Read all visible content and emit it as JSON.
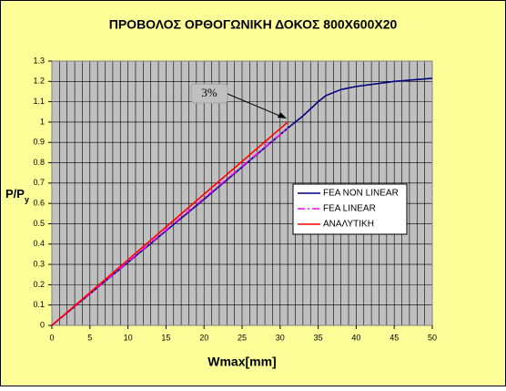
{
  "chart_data": {
    "type": "line",
    "title": "ΠΡΟΒΟΛΟΣ ΟΡΘΟΓΩΝΙΚΗ ΔΟΚΟΣ 800X600X20",
    "xlabel": "Wmax[mm]",
    "ylabel": {
      "main": "P/P",
      "sub": "y"
    },
    "annotation": "3%",
    "xlim": [
      0,
      50
    ],
    "xticks": [
      0,
      5,
      10,
      15,
      20,
      25,
      30,
      35,
      40,
      45,
      50
    ],
    "xminor": 1,
    "ylim": [
      0,
      1.3
    ],
    "yticks": [
      0,
      0.1,
      0.2,
      0.3,
      0.4,
      0.5,
      0.6,
      0.7,
      0.8,
      0.9,
      1,
      1.1,
      1.2,
      1.3
    ],
    "grid": true,
    "legend": "right",
    "series": [
      {
        "name": "FEA NON LINEAR",
        "color": "#000080",
        "dash": "none",
        "x": [
          0,
          10,
          20,
          31,
          33,
          35,
          36,
          38,
          40,
          45,
          50
        ],
        "values": [
          0,
          0.31,
          0.62,
          0.97,
          1.03,
          1.1,
          1.13,
          1.16,
          1.175,
          1.2,
          1.215
        ]
      },
      {
        "name": "FEA LINEAR",
        "color": "#ff00ff",
        "dash": "8 3 2 3",
        "x": [
          0,
          31
        ],
        "values": [
          0,
          0.97
        ]
      },
      {
        "name": "ΑΝΑΛΥΤΙΚΗ",
        "color": "#ff0000",
        "dash": "none",
        "x": [
          0,
          31
        ],
        "values": [
          0,
          1.0
        ]
      }
    ]
  }
}
